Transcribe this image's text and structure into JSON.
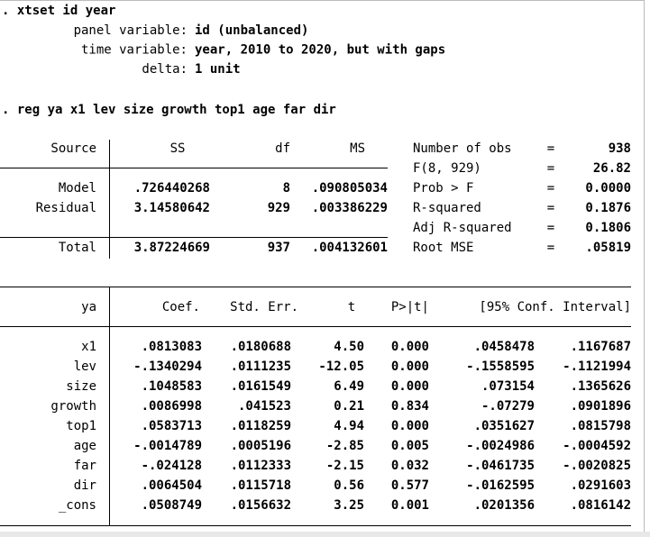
{
  "commands": [
    ". xtset id year",
    ". reg ya x1 lev size growth top1 age far dir"
  ],
  "xtset": [
    [
      "panel variable:",
      "id (unbalanced)"
    ],
    [
      "time variable:",
      "year, 2010 to 2020, but with gaps"
    ],
    [
      "delta:",
      "1 unit"
    ]
  ],
  "anova": {
    "header": [
      "Source",
      "SS",
      "df",
      "MS"
    ],
    "rows": [
      [
        "Model",
        ".726440268",
        "8",
        ".090805034"
      ],
      [
        "Residual",
        "3.14580642",
        "929",
        ".003386229"
      ],
      [
        "Total",
        "3.87224669",
        "937",
        ".004132601"
      ]
    ]
  },
  "stats": [
    [
      "Number of obs",
      "=",
      "938"
    ],
    [
      "F(8, 929)",
      "=",
      "26.82"
    ],
    [
      "Prob > F",
      "=",
      "0.0000"
    ],
    [
      "R-squared",
      "=",
      "0.1876"
    ],
    [
      "Adj R-squared",
      "=",
      "0.1806"
    ],
    [
      "Root MSE",
      "=",
      ".05819"
    ]
  ],
  "coef": {
    "header": [
      "ya",
      "Coef.",
      "Std. Err.",
      "t",
      "P>|t|",
      "[95% Conf. Interval]"
    ],
    "rows": [
      [
        "x1",
        ".0813083",
        ".0180688",
        "4.50",
        "0.000",
        ".0458478",
        ".1167687"
      ],
      [
        "lev",
        "-.1340294",
        ".0111235",
        "-12.05",
        "0.000",
        "-.1558595",
        "-.1121994"
      ],
      [
        "size",
        ".1048583",
        ".0161549",
        "6.49",
        "0.000",
        ".073154",
        ".1365626"
      ],
      [
        "growth",
        ".0086998",
        ".041523",
        "0.21",
        "0.834",
        "-.07279",
        ".0901896"
      ],
      [
        "top1",
        ".0583713",
        ".0118259",
        "4.94",
        "0.000",
        ".0351627",
        ".0815798"
      ],
      [
        "age",
        "-.0014789",
        ".0005196",
        "-2.85",
        "0.005",
        "-.0024986",
        "-.0004592"
      ],
      [
        "far",
        "-.024128",
        ".0112333",
        "-2.15",
        "0.032",
        "-.0461735",
        "-.0020825"
      ],
      [
        "dir",
        ".0064504",
        ".0115718",
        "0.56",
        "0.577",
        "-.0162595",
        ".0291603"
      ],
      [
        "_cons",
        ".0508749",
        ".0156632",
        "3.25",
        "0.001",
        ".0201356",
        ".0816142"
      ]
    ]
  }
}
